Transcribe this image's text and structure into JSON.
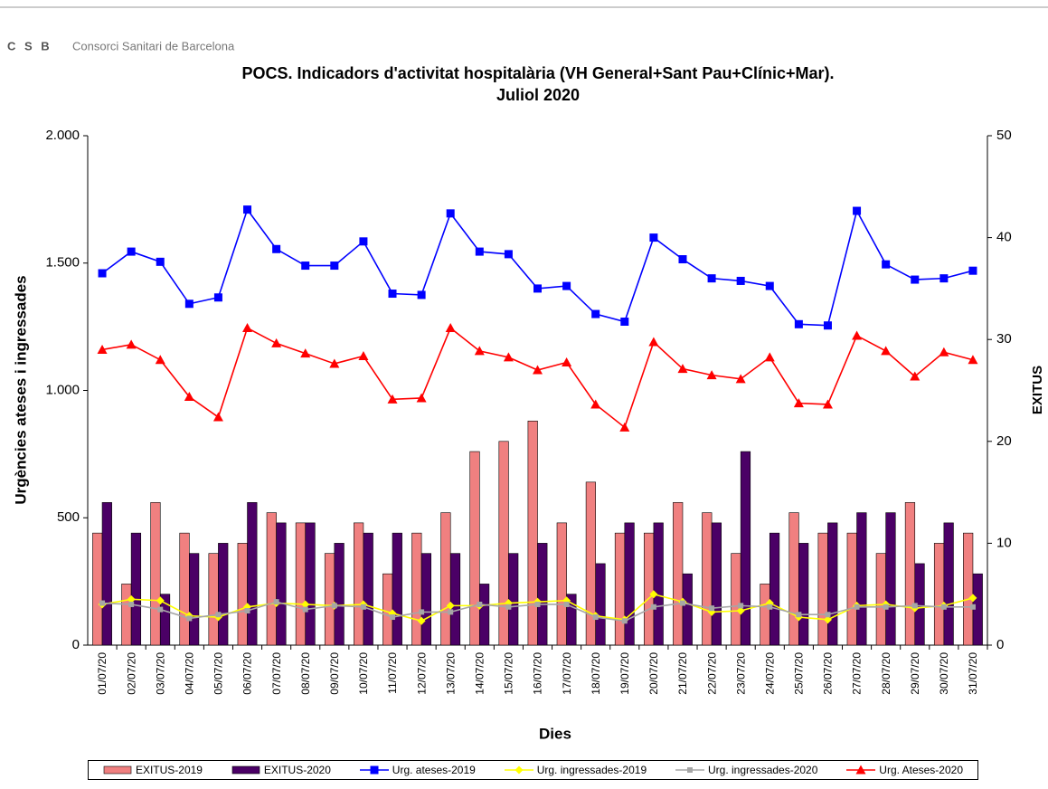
{
  "header": {
    "logo": "C S B",
    "org": "Consorci Sanitari de Barcelona"
  },
  "chart_data": {
    "type": "combo",
    "title": "POCS.  Indicadors d'activitat hospitalària (VH General+Sant Pau+Clínic+Mar).",
    "subtitle": "Juliol 2020",
    "x_label": "Dies",
    "y_label": "Urgències ateses i ingressades",
    "y2_label": "EXITUS",
    "categories": [
      "01/07/20",
      "02/07/20",
      "03/07/20",
      "04/07/20",
      "05/07/20",
      "06/07/20",
      "07/07/20",
      "08/07/20",
      "09/07/20",
      "10/07/20",
      "11/07/20",
      "12/07/20",
      "13/07/20",
      "14/07/20",
      "15/07/20",
      "16/07/20",
      "17/07/20",
      "18/07/20",
      "19/07/20",
      "20/07/20",
      "21/07/20",
      "22/07/20",
      "23/07/20",
      "24/07/20",
      "25/07/20",
      "26/07/20",
      "27/07/20",
      "28/07/20",
      "29/07/20",
      "30/07/20",
      "31/07/20"
    ],
    "ylim": [
      0,
      2000
    ],
    "yticks": [
      0,
      500,
      {
        "value": 1000,
        "label": "1.000"
      },
      {
        "value": 1500,
        "label": "1.500"
      },
      {
        "value": 2000,
        "label": "2.000"
      }
    ],
    "y2lim": [
      0,
      50
    ],
    "y2ticks": [
      0,
      10,
      20,
      30,
      40,
      50
    ],
    "grid": false,
    "legend": "bottom",
    "series": [
      {
        "name": "EXITUS-2019",
        "type": "bar",
        "axis": "y2",
        "color": "#f08080",
        "values": [
          11,
          6,
          14,
          11,
          9,
          10,
          13,
          12,
          9,
          12,
          7,
          11,
          13,
          19,
          20,
          22,
          12,
          16,
          11,
          11,
          14,
          13,
          9,
          6,
          13,
          11,
          11,
          9,
          14,
          10,
          11
        ]
      },
      {
        "name": "EXITUS-2020",
        "type": "bar",
        "axis": "y2",
        "color": "#4b0066",
        "values": [
          14,
          11,
          5,
          9,
          10,
          14,
          12,
          12,
          10,
          11,
          11,
          9,
          9,
          6,
          9,
          10,
          5,
          8,
          12,
          12,
          7,
          12,
          19,
          11,
          10,
          12,
          13,
          13,
          8,
          12,
          7
        ]
      },
      {
        "name": "Urg. ateses-2019",
        "type": "line",
        "marker": "square",
        "color": "#0000ff",
        "values": [
          1460,
          1545,
          1505,
          1340,
          1365,
          1710,
          1555,
          1490,
          1490,
          1585,
          1380,
          1375,
          1695,
          1545,
          1535,
          1400,
          1410,
          1300,
          1270,
          1600,
          1515,
          1440,
          1430,
          1410,
          1260,
          1255,
          1705,
          1495,
          1435,
          1440,
          1470
        ]
      },
      {
        "name": "Urg. ingressades-2019",
        "type": "line",
        "marker": "diamond",
        "color": "#ffff00",
        "values": [
          160,
          180,
          175,
          115,
          110,
          150,
          165,
          160,
          155,
          160,
          125,
          95,
          155,
          155,
          165,
          170,
          175,
          115,
          100,
          200,
          170,
          130,
          135,
          165,
          110,
          100,
          155,
          160,
          145,
          155,
          185
        ]
      },
      {
        "name": "Urg. ingressades-2020",
        "type": "line",
        "marker": "circle",
        "color": "#a6a6a6",
        "values": [
          165,
          160,
          140,
          105,
          120,
          135,
          170,
          140,
          155,
          150,
          110,
          130,
          130,
          160,
          150,
          160,
          160,
          110,
          95,
          150,
          165,
          145,
          155,
          150,
          120,
          120,
          150,
          150,
          155,
          150,
          150
        ]
      },
      {
        "name": "Urg. Ateses-2020",
        "type": "line",
        "marker": "triangle",
        "color": "#ff0000",
        "values": [
          1160,
          1180,
          1120,
          975,
          895,
          1245,
          1185,
          1145,
          1105,
          1135,
          965,
          970,
          1245,
          1155,
          1130,
          1080,
          1110,
          945,
          855,
          1190,
          1085,
          1060,
          1045,
          1130,
          950,
          945,
          1215,
          1155,
          1055,
          1150,
          1120
        ]
      }
    ]
  }
}
